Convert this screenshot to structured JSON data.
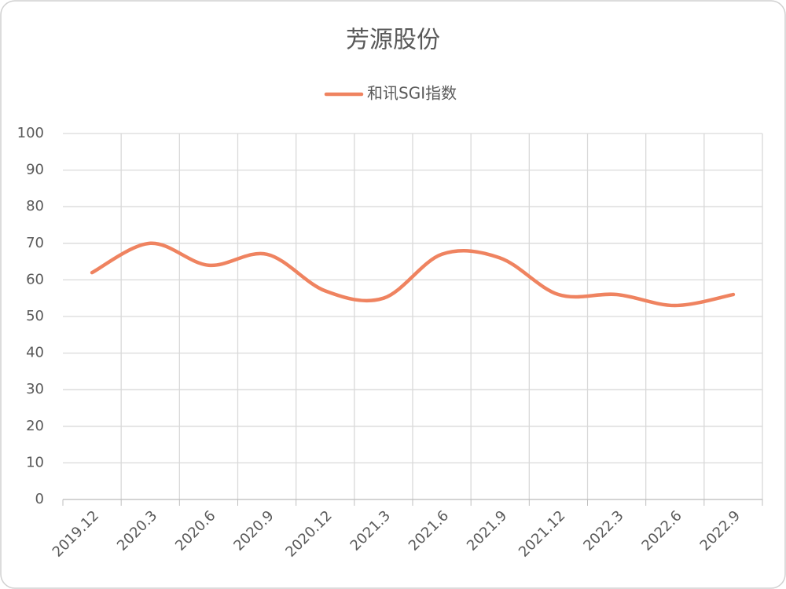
{
  "chart_data": {
    "type": "line",
    "title": "芳源股份",
    "categories": [
      "2019.12",
      "2020.3",
      "2020.6",
      "2020.9",
      "2020.12",
      "2021.3",
      "2021.6",
      "2021.9",
      "2021.12",
      "2022.3",
      "2022.6",
      "2022.9"
    ],
    "series": [
      {
        "name": "和讯SGI指数",
        "color": "#ef8360",
        "values": [
          62,
          70,
          64,
          67,
          57,
          55,
          67,
          66,
          56,
          56,
          53,
          56
        ]
      }
    ],
    "ylim": [
      0,
      100
    ],
    "yticks": [
      0,
      10,
      20,
      30,
      40,
      50,
      60,
      70,
      80,
      90,
      100
    ],
    "grid": true,
    "smooth": true,
    "legend": "top"
  }
}
